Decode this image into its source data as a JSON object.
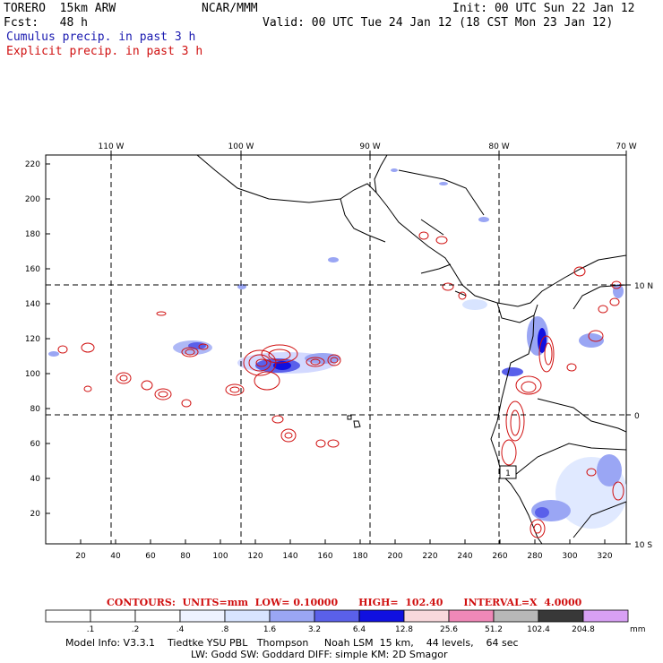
{
  "header": {
    "model": "TORERO  15km ARW",
    "org": "NCAR/MMM",
    "init": "Init: 00 UTC Sun 22 Jan 12",
    "fcst": "Fcst:   48 h",
    "valid": "Valid: 00 UTC Tue 24 Jan 12 (18 CST Mon 23 Jan 12)",
    "field1": "Cumulus precip. in past 3 h",
    "field2": "Explicit precip. in past 3 h"
  },
  "map": {
    "lon_labels": [
      "110 W",
      "100 W",
      "90 W",
      "80 W",
      "70 W"
    ],
    "lat_labels": [
      "10 N",
      "0",
      "10 S"
    ],
    "y_ticks": [
      "220",
      "200",
      "180",
      "160",
      "140",
      "120",
      "100",
      "80",
      "60",
      "40",
      "20"
    ],
    "x_ticks": [
      "20",
      "40",
      "60",
      "80",
      "100",
      "120",
      "140",
      "160",
      "180",
      "200",
      "220",
      "240",
      "260",
      "280",
      "300",
      "320"
    ],
    "highlight_label": "1"
  },
  "contours": {
    "text": "CONTOURS:  UNITS=mm  LOW= 0.10000      HIGH=  102.40      INTERVAL=X  4.0000"
  },
  "colorbar": {
    "labels": [
      ".1",
      ".2",
      ".4",
      ".8",
      "1.6",
      "3.2",
      "6.4",
      "12.8",
      "25.6",
      "51.2",
      "102.4",
      "204.8"
    ],
    "unit": "mm",
    "colors": [
      "#ffffff",
      "#ffffff",
      "#ffffff",
      "#eef2ff",
      "#d8e4ff",
      "#9aa6f4",
      "#5a60ea",
      "#1010e0",
      "#f8d8dc",
      "#f088b8",
      "#b8b8b8",
      "#383838",
      "#d8a0f4"
    ]
  },
  "model_info": {
    "line1": "Model Info: V3.3.1    Tiedtke YSU PBL   Thompson     Noah LSM  15 km,    44 levels,    64 sec",
    "line2": "LW: Godd SW: Goddard DIFF: simple KM: 2D Smagor"
  }
}
